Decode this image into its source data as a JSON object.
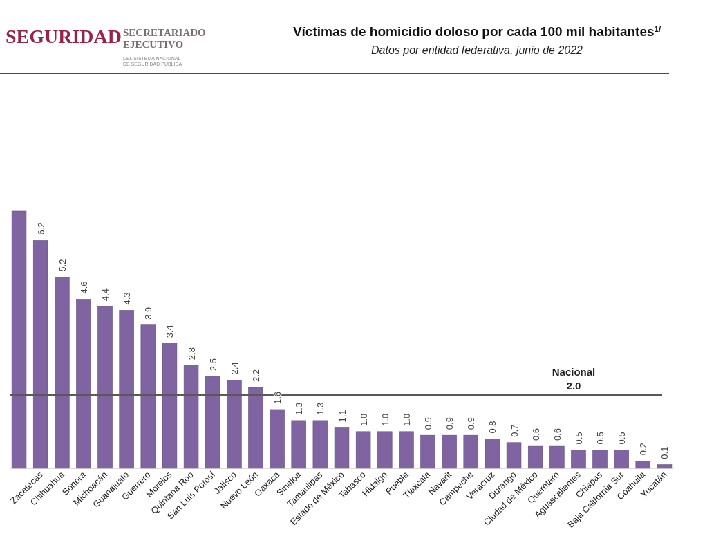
{
  "chart_data": {
    "type": "bar",
    "title": "Víctimas de homicidio doloso por cada 100 mil habitantes$^{1/}$",
    "subtitle": "Datos por entidad federativa, junio de 2022",
    "annotations": [
      "SEGURIDAD",
      "SECRETARIADO\nEJECUTIVO",
      "DEL SISTEMA NACIONAL\nDE SEGURIDAD PÚBLICA"
    ],
    "categories": [
      null,
      "Zacatecas",
      "Chihuahua",
      "Sonora",
      "Michoacán",
      "Guanajuato",
      "Guerrero",
      "Morelos",
      "Quintana Roo",
      "San Luis Potosí",
      "Jalisco",
      "Nuevo León",
      "Oaxaca",
      "Sinaloa",
      "Tamaulipas",
      "Estado de México",
      "Tabasco",
      "Hidalgo",
      "Puebla",
      "Tlaxcala",
      "Nayarit",
      "Campeche",
      "Veracruz",
      "Durango",
      "Ciudad de México",
      "Querétaro",
      "Aguascalientes",
      "Chiapas",
      "Baja California Sur",
      "Coahuila",
      "Yucatán"
    ],
    "values": [
      7.0,
      6.2,
      5.2,
      4.6,
      4.4,
      4.3,
      3.9,
      3.4,
      2.8,
      2.5,
      2.4,
      2.2,
      1.6,
      1.3,
      1.3,
      1.1,
      1.0,
      1.0,
      1.0,
      0.9,
      0.9,
      0.9,
      0.8,
      0.7,
      0.6,
      0.6,
      0.5,
      0.5,
      0.5,
      0.2,
      0.1
    ],
    "value_labels": [
      null,
      "6.2",
      "5.2",
      "4.6",
      "4.4",
      "4.3",
      "3.9",
      "3.4",
      "2.8",
      "2.5",
      "2.4",
      "2.2",
      "1.6",
      "1.3",
      "1.3",
      "1.1",
      "1.0",
      "1.0",
      "1.0",
      "0.9",
      "0.9",
      "0.9",
      "0.8",
      "0.7",
      "0.6",
      "0.6",
      "0.5",
      "0.5",
      "0.5",
      "0.2",
      "0.1"
    ],
    "color": "#8064a2",
    "ref_lines": [
      {
        "axis": "y",
        "value": 2.0,
        "label": "Nacional\n2.0",
        "color": "#595959"
      }
    ]
  }
}
